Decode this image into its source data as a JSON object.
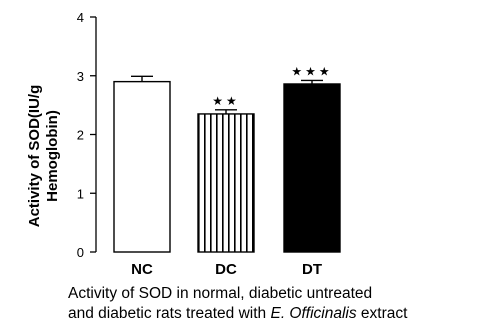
{
  "chart_data": {
    "type": "bar",
    "ylabel": "Activity of SOD(IU/g Hemoglobin)",
    "ylabel_lines": [
      "Activity of SOD(IU/g",
      "Hemoglobin)"
    ],
    "ylim": [
      0,
      4
    ],
    "yticks": [
      "0",
      "1",
      "2",
      "3",
      "4"
    ],
    "categories": [
      "NC",
      "DC",
      "DT"
    ],
    "values": [
      2.9,
      2.35,
      2.86
    ],
    "errors": [
      0.09,
      0.07,
      0.06
    ],
    "fills": [
      "white",
      "vertical-stripes",
      "black"
    ],
    "significance": [
      "",
      "★★",
      "★★★"
    ],
    "bar_color": "#000000"
  },
  "caption": {
    "line1": "Activity of SOD in normal, diabetic untreated",
    "line2_prefix": "and diabetic rats treated with ",
    "line2_species": "E. Officinalis",
    "line2_suffix": " extract"
  }
}
